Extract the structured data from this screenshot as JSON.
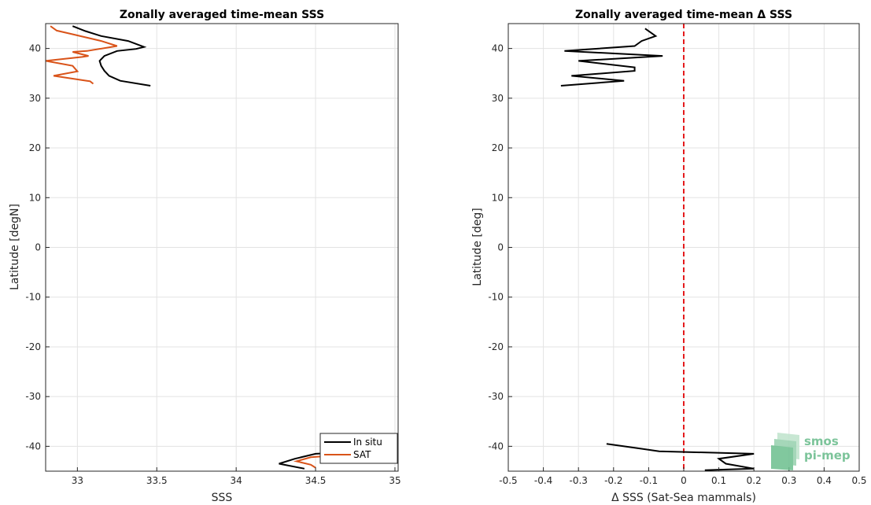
{
  "chart_data": [
    {
      "type": "line",
      "title": "Zonally averaged time-mean SSS",
      "xlabel": "SSS",
      "ylabel": "Latitude [degN]",
      "xlim": [
        32.8,
        35.02
      ],
      "ylim": [
        -45,
        45
      ],
      "xticks": [
        "33",
        "33.5",
        "34",
        "34.5",
        "35"
      ],
      "xtick_values": [
        33,
        33.5,
        34,
        34.5,
        35
      ],
      "yticks": [
        "40",
        "30",
        "20",
        "10",
        "0",
        "-10",
        "-20",
        "-30",
        "-40"
      ],
      "ytick_values": [
        40,
        30,
        20,
        10,
        0,
        -10,
        -20,
        -30,
        -40
      ],
      "grid": true,
      "legend_position": "bottom-right",
      "series": [
        {
          "name": "In situ",
          "color": "#000000",
          "segments": [
            [
              [
                33.46,
                32.5
              ],
              [
                33.27,
                33.5
              ],
              [
                33.2,
                34.5
              ],
              [
                33.17,
                35.5
              ],
              [
                33.15,
                36.5
              ],
              [
                33.14,
                37.5
              ],
              [
                33.17,
                38.5
              ],
              [
                33.25,
                39.5
              ],
              [
                33.37,
                39.9
              ],
              [
                33.42,
                40.3
              ],
              [
                33.32,
                41.5
              ],
              [
                33.15,
                42.5
              ],
              [
                33.05,
                43.5
              ],
              [
                32.97,
                44.5
              ]
            ],
            [
              [
                34.43,
                -44.5
              ],
              [
                34.27,
                -43.5
              ],
              [
                34.37,
                -42.5
              ],
              [
                34.5,
                -41.5
              ],
              [
                34.7,
                -41.2
              ],
              [
                34.92,
                -40.5
              ],
              [
                35.02,
                -39.5
              ]
            ]
          ]
        },
        {
          "name": "SAT",
          "color": "#d95319",
          "segments": [
            [
              [
                33.1,
                32.9
              ],
              [
                33.08,
                33.4
              ],
              [
                33.06,
                33.5
              ],
              [
                32.85,
                34.5
              ],
              [
                33.0,
                35.4
              ],
              [
                32.97,
                36.5
              ],
              [
                32.8,
                37.5
              ],
              [
                33.03,
                38.3
              ],
              [
                33.07,
                38.5
              ],
              [
                32.97,
                39.3
              ],
              [
                33.06,
                39.5
              ],
              [
                33.25,
                40.5
              ],
              [
                33.15,
                41.5
              ],
              [
                32.95,
                43.0
              ],
              [
                32.87,
                43.6
              ],
              [
                32.83,
                44.5
              ]
            ],
            [
              [
                34.5,
                -44.3
              ],
              [
                34.47,
                -43.7
              ],
              [
                34.38,
                -43.0
              ],
              [
                34.47,
                -42.2
              ],
              [
                34.6,
                -41.9
              ]
            ]
          ]
        }
      ]
    },
    {
      "type": "line",
      "title": "Zonally averaged time-mean Δ SSS",
      "xlabel": "Δ SSS (Sat-Sea mammals)",
      "ylabel": "Latitude [deg]",
      "xlim": [
        -0.5,
        0.5
      ],
      "ylim": [
        -45,
        45
      ],
      "xticks": [
        "-0.5",
        "-0.4",
        "-0.3",
        "-0.2",
        "-0.1",
        "0",
        "0.1",
        "0.2",
        "0.3",
        "0.4",
        "0.5"
      ],
      "xtick_values": [
        -0.5,
        -0.4,
        -0.3,
        -0.2,
        -0.1,
        0,
        0.1,
        0.2,
        0.3,
        0.4,
        0.5
      ],
      "yticks": [
        "40",
        "30",
        "20",
        "10",
        "0",
        "-10",
        "-20",
        "-30",
        "-40"
      ],
      "ytick_values": [
        40,
        30,
        20,
        10,
        0,
        -10,
        -20,
        -30,
        -40
      ],
      "grid": true,
      "reference_line": {
        "x": 0,
        "color": "#e41a1c",
        "style": "dashed"
      },
      "series": [
        {
          "color": "#000000",
          "segments": [
            [
              [
                -0.35,
                32.5
              ],
              [
                -0.17,
                33.5
              ],
              [
                -0.32,
                34.5
              ],
              [
                -0.14,
                35.5
              ],
              [
                -0.14,
                36.2
              ],
              [
                -0.3,
                37.5
              ],
              [
                -0.06,
                38.5
              ],
              [
                -0.34,
                39.5
              ],
              [
                -0.14,
                40.5
              ],
              [
                -0.12,
                41.5
              ],
              [
                -0.08,
                42.5
              ],
              [
                -0.11,
                44.0
              ]
            ],
            [
              [
                0.06,
                -44.8
              ],
              [
                0.2,
                -44.5
              ],
              [
                0.12,
                -43.5
              ],
              [
                0.1,
                -42.5
              ],
              [
                0.2,
                -41.5
              ],
              [
                -0.07,
                -41.0
              ],
              [
                -0.12,
                -40.5
              ],
              [
                -0.22,
                -39.5
              ]
            ]
          ]
        }
      ]
    }
  ],
  "watermark": {
    "line1": "smos",
    "line2": "pi-mep"
  }
}
